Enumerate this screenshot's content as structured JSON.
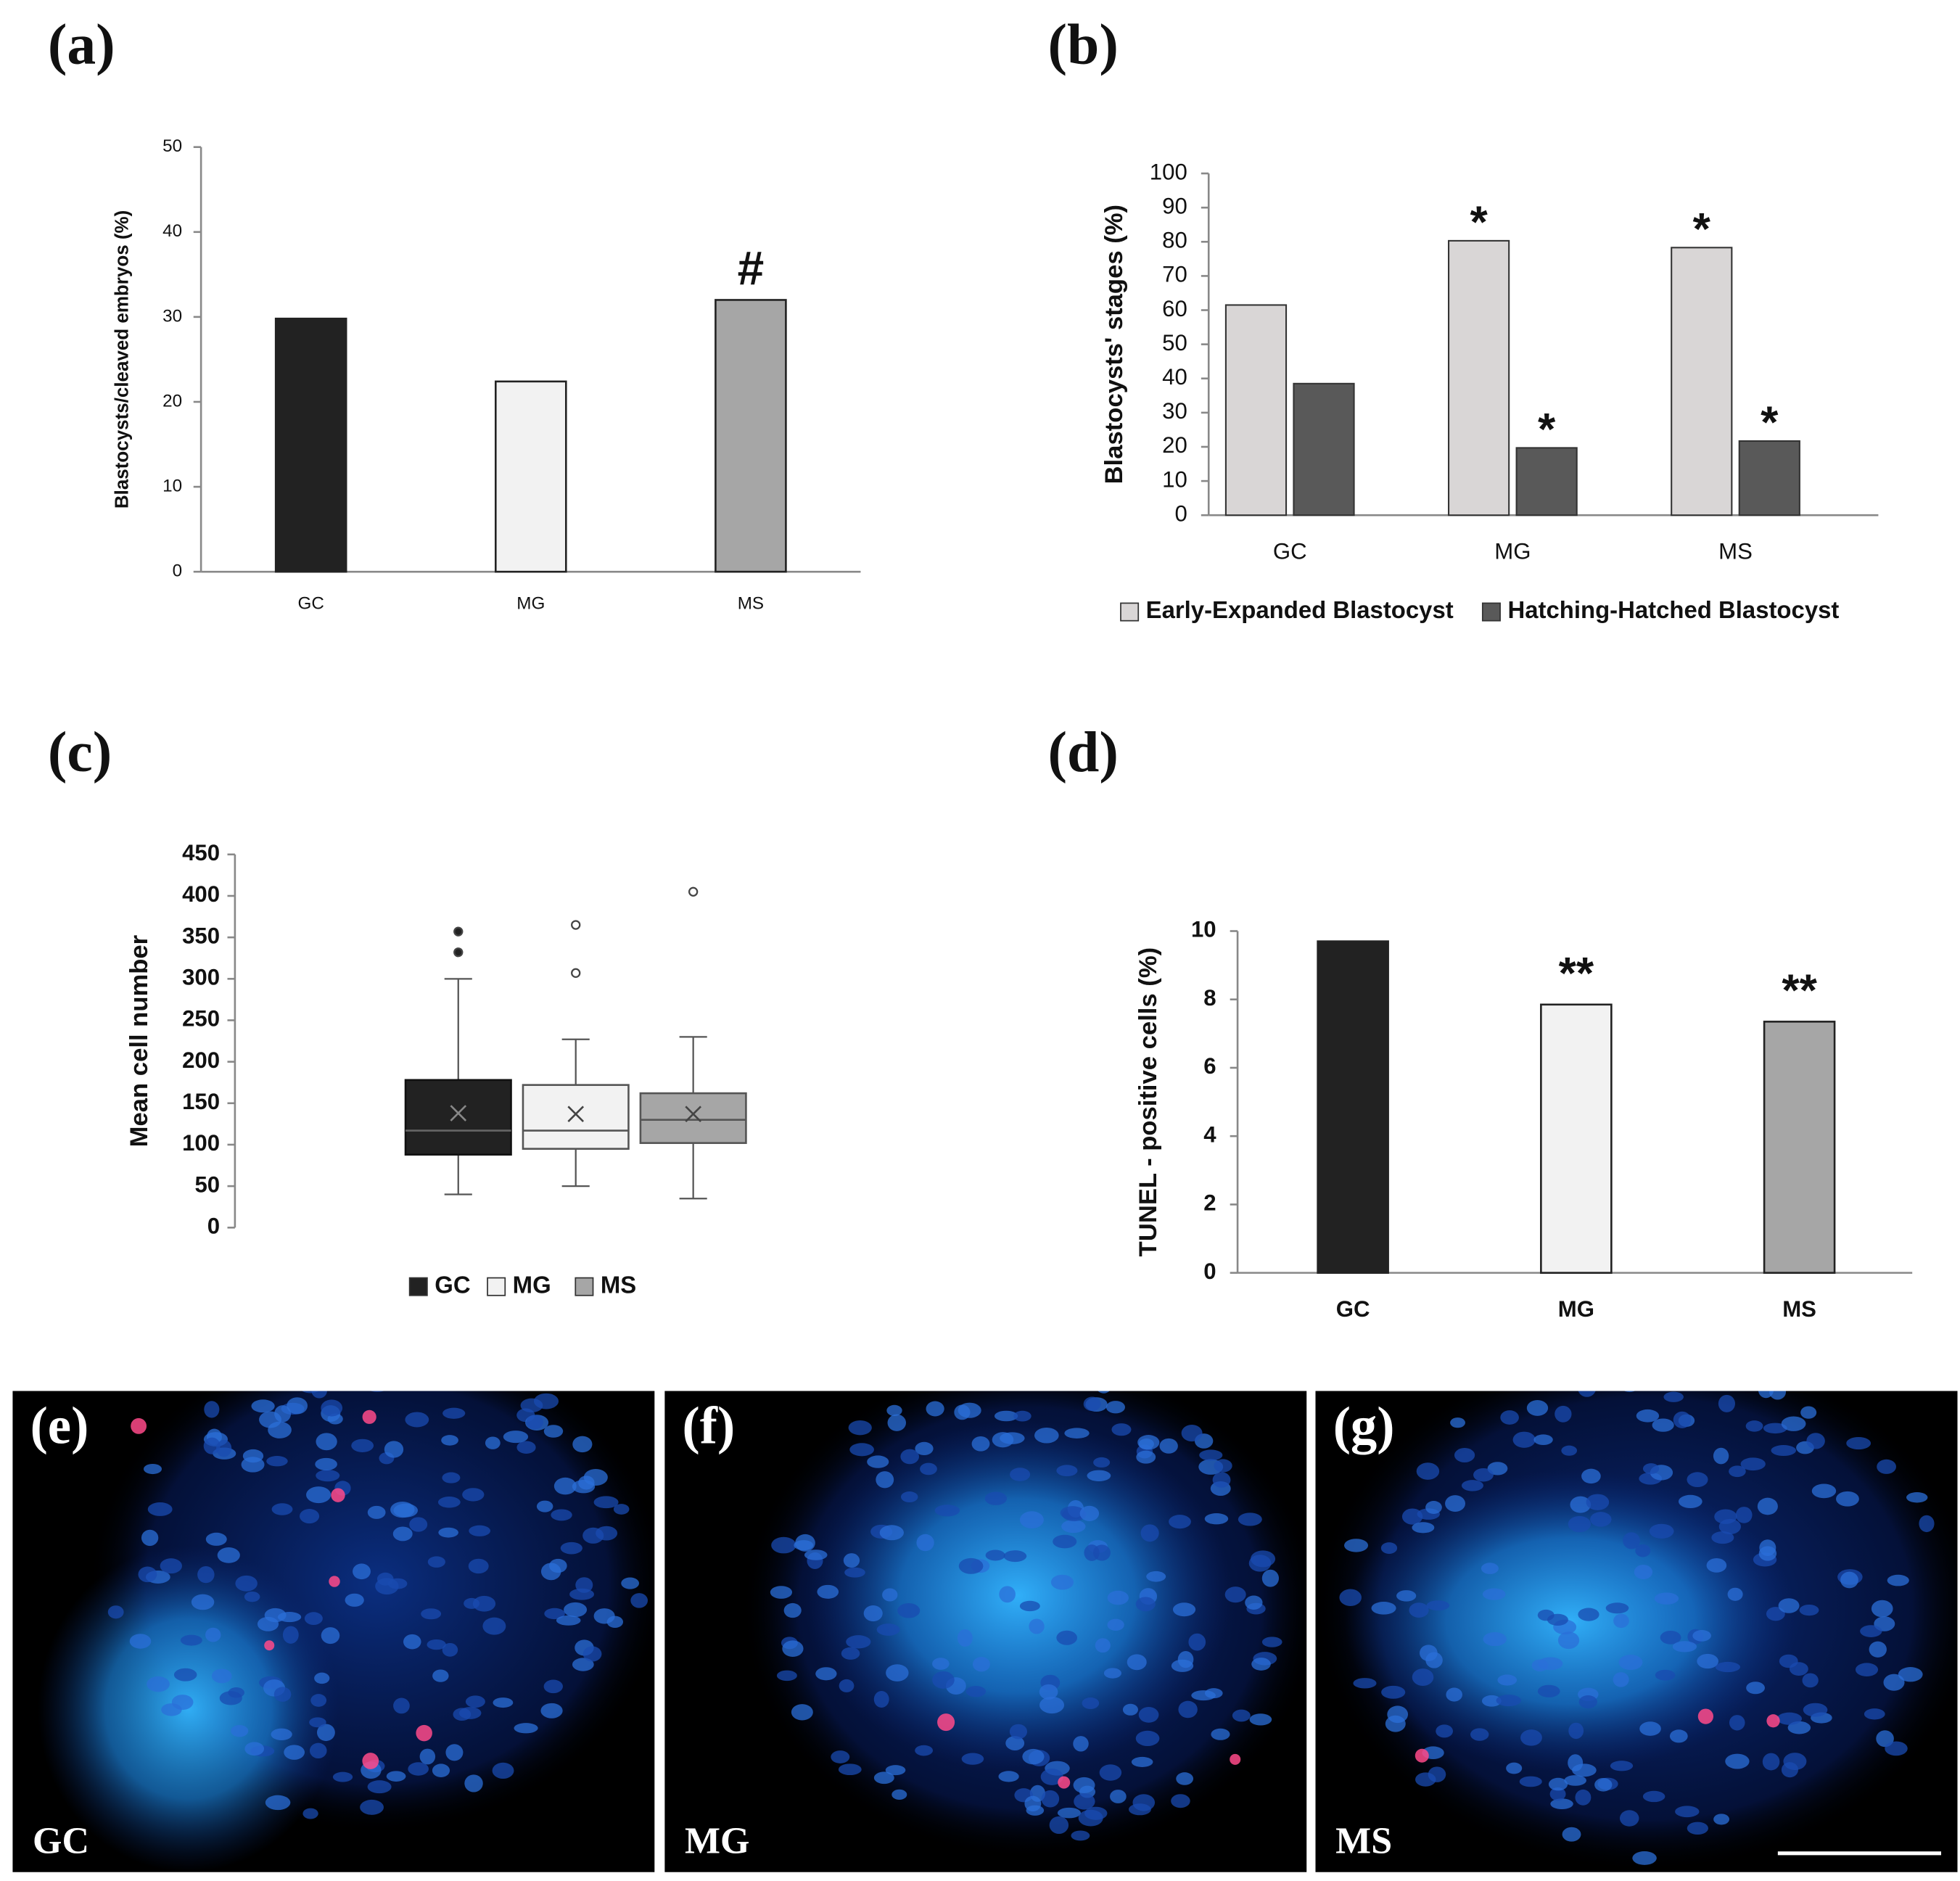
{
  "chart_data": [
    {
      "type": "bar",
      "label": "(a)",
      "ylabel": "Blastocysts/cleaved embryos (%)",
      "categories": [
        "GC",
        "MG",
        "MS"
      ],
      "values": [
        29.8,
        22.4,
        32.0
      ],
      "colors": [
        "#222222",
        "#f2f2f2",
        "#a6a6a6"
      ],
      "annotations": [
        null,
        null,
        "#"
      ],
      "ylim": [
        0,
        50
      ],
      "yticks": [
        0,
        10,
        20,
        30,
        40,
        50
      ]
    },
    {
      "type": "grouped_bar",
      "label": "(b)",
      "ylabel": "Blastocysts' stages  (%)",
      "categories": [
        "GC",
        "MG",
        "MS"
      ],
      "series": [
        {
          "name": "Early-Expanded Blastocyst",
          "color": "#d9d6d6",
          "values": [
            61.5,
            80.3,
            78.3
          ],
          "annotations": [
            null,
            "*",
            "*"
          ]
        },
        {
          "name": "Hatching-Hatched Blastocyst",
          "color": "#595959",
          "values": [
            38.5,
            19.7,
            21.7
          ],
          "annotations": [
            null,
            "*",
            "*"
          ]
        }
      ],
      "ylim": [
        0,
        100
      ],
      "yticks": [
        0,
        10,
        20,
        30,
        40,
        50,
        60,
        70,
        80,
        90,
        100
      ],
      "legend": "bottom"
    },
    {
      "type": "box",
      "label": "(c)",
      "ylabel": "Mean cell number",
      "series": [
        {
          "name": "GC",
          "color": "#222222",
          "min": 40,
          "q1": 88,
          "median": 117,
          "q3": 178,
          "max": 300,
          "mean": 138,
          "outliers": [
            332,
            357
          ]
        },
        {
          "name": "MG",
          "color": "#f2f2f2",
          "min": 50,
          "q1": 95,
          "median": 117,
          "q3": 172,
          "max": 227,
          "mean": 137,
          "outliers": [
            307,
            365
          ]
        },
        {
          "name": "MS",
          "color": "#a6a6a6",
          "min": 35,
          "q1": 102,
          "median": 130,
          "q3": 162,
          "max": 230,
          "mean": 137,
          "outliers": [
            405
          ]
        }
      ],
      "ylim": [
        0,
        450
      ],
      "yticks": [
        0,
        50,
        100,
        150,
        200,
        250,
        300,
        350,
        400,
        450
      ],
      "legend": "bottom"
    },
    {
      "type": "bar",
      "label": "(d)",
      "ylabel": "TUNEL - positive cells (%)",
      "categories": [
        "GC",
        "MG",
        "MS"
      ],
      "values": [
        9.7,
        7.85,
        7.35
      ],
      "colors": [
        "#222222",
        "#f2f2f2",
        "#a6a6a6"
      ],
      "annotations": [
        null,
        "**",
        "**"
      ],
      "ylim": [
        0,
        10
      ],
      "yticks": [
        0,
        2,
        4,
        6,
        8,
        10
      ]
    }
  ],
  "micrographs": [
    {
      "label": "(e)",
      "group": "GC"
    },
    {
      "label": "(f)",
      "group": "MG"
    },
    {
      "label": "(g)",
      "group": "MS"
    }
  ]
}
